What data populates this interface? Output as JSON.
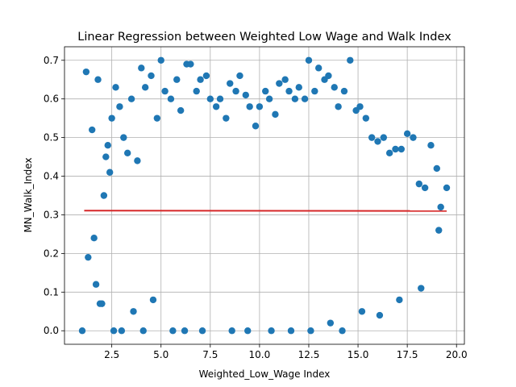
{
  "chart_data": {
    "type": "scatter",
    "title": "Linear Regression between Weighted Low Wage and Walk Index",
    "xlabel": "Weighted_Low_Wage Index",
    "ylabel": "MN_Walk_Index",
    "xlim": [
      0.1,
      20.4
    ],
    "ylim": [
      -0.035,
      0.735
    ],
    "xticks": [
      2.5,
      5.0,
      7.5,
      10.0,
      12.5,
      15.0,
      17.5,
      20.0
    ],
    "xtick_labels": [
      "2.5",
      "5.0",
      "7.5",
      "10.0",
      "12.5",
      "15.0",
      "17.5",
      "20.0"
    ],
    "yticks": [
      0.0,
      0.1,
      0.2,
      0.3,
      0.4,
      0.5,
      0.6,
      0.7
    ],
    "ytick_labels": [
      "0.0",
      "0.1",
      "0.2",
      "0.3",
      "0.4",
      "0.5",
      "0.6",
      "0.7"
    ],
    "grid": true,
    "legend": "none",
    "point_color": "#1f77b4",
    "line_color": "#d62728",
    "regression": {
      "x": [
        1.1,
        19.5
      ],
      "y": [
        0.311,
        0.31
      ]
    },
    "points": {
      "x": [
        1.0,
        1.2,
        1.8,
        1.5,
        2.3,
        2.2,
        2.4,
        1.3,
        1.6,
        1.9,
        2.0,
        2.1,
        1.7,
        2.5,
        2.7,
        2.9,
        3.1,
        3.3,
        3.5,
        3.8,
        4.0,
        4.2,
        4.5,
        4.8,
        5.0,
        5.2,
        5.5,
        5.8,
        6.0,
        6.3,
        6.5,
        6.8,
        7.0,
        7.3,
        7.5,
        7.8,
        8.0,
        8.3,
        8.5,
        8.8,
        9.0,
        9.3,
        9.5,
        9.8,
        10.0,
        10.3,
        10.5,
        10.8,
        11.0,
        11.3,
        11.5,
        11.8,
        12.0,
        12.3,
        12.5,
        12.8,
        13.0,
        13.3,
        13.5,
        13.8,
        14.0,
        14.3,
        14.6,
        14.9,
        15.1,
        15.4,
        15.7,
        16.0,
        16.3,
        16.6,
        16.9,
        17.2,
        17.5,
        17.8,
        18.1,
        18.4,
        18.7,
        19.0,
        19.2,
        19.5,
        3.0,
        4.1,
        5.6,
        6.2,
        7.1,
        8.6,
        9.4,
        10.6,
        11.6,
        12.6,
        13.6,
        14.2,
        15.2,
        16.1,
        17.1,
        18.2,
        19.1,
        2.6,
        3.6,
        4.6
      ],
      "y": [
        0.0,
        0.67,
        0.65,
        0.52,
        0.48,
        0.45,
        0.41,
        0.19,
        0.24,
        0.07,
        0.07,
        0.35,
        0.12,
        0.55,
        0.63,
        0.58,
        0.5,
        0.46,
        0.6,
        0.44,
        0.68,
        0.63,
        0.66,
        0.55,
        0.7,
        0.62,
        0.6,
        0.65,
        0.57,
        0.69,
        0.69,
        0.62,
        0.65,
        0.66,
        0.6,
        0.58,
        0.6,
        0.55,
        0.64,
        0.62,
        0.66,
        0.61,
        0.58,
        0.53,
        0.58,
        0.62,
        0.6,
        0.56,
        0.64,
        0.65,
        0.62,
        0.6,
        0.63,
        0.6,
        0.7,
        0.62,
        0.68,
        0.65,
        0.66,
        0.63,
        0.58,
        0.62,
        0.7,
        0.57,
        0.58,
        0.55,
        0.5,
        0.49,
        0.5,
        0.46,
        0.47,
        0.47,
        0.51,
        0.5,
        0.38,
        0.37,
        0.48,
        0.42,
        0.32,
        0.37,
        0.0,
        0.0,
        0.0,
        0.0,
        0.0,
        0.0,
        0.0,
        0.0,
        0.0,
        0.0,
        0.02,
        0.0,
        0.05,
        0.04,
        0.08,
        0.11,
        0.26,
        0.0,
        0.05,
        0.08
      ]
    }
  }
}
